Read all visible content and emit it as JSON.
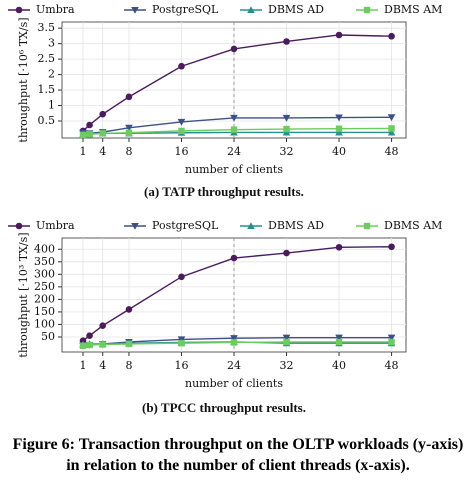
{
  "chart_data": [
    {
      "type": "line",
      "legend": "upper center",
      "grid": true,
      "x": [
        1,
        2,
        4,
        8,
        16,
        24,
        32,
        40,
        48
      ],
      "xlim": [
        -2.2,
        50.2
      ],
      "xticks": [
        1,
        4,
        8,
        16,
        24,
        32,
        40,
        48
      ],
      "ylim": [
        -0.05,
        3.7
      ],
      "yticks": [
        0.5,
        1.0,
        1.5,
        2.0,
        2.5,
        3.0,
        3.5
      ],
      "x_label": "number of clients",
      "y_label": "throughput [·10⁶ TX/s]",
      "vline": 24,
      "caption": "(a) TATP throughput results.",
      "series": [
        {
          "name": "Umbra",
          "color": "#4a1c5c",
          "marker": "circle",
          "values": [
            0.18,
            0.37,
            0.72,
            1.28,
            2.27,
            2.83,
            3.07,
            3.28,
            3.24
          ]
        },
        {
          "name": "PostgreSQL",
          "color": "#3d5088",
          "marker": "triangle-down",
          "values": [
            0.12,
            0.1,
            0.14,
            0.28,
            0.47,
            0.6,
            0.6,
            0.61,
            0.62
          ]
        },
        {
          "name": "DBMS AD",
          "color": "#2a8f8c",
          "marker": "triangle-up",
          "values": [
            0.07,
            0.08,
            0.1,
            0.1,
            0.12,
            0.13,
            0.13,
            0.13,
            0.13
          ]
        },
        {
          "name": "DBMS AM",
          "color": "#6ccc5f",
          "marker": "square",
          "values": [
            0.05,
            0.07,
            0.1,
            0.12,
            0.18,
            0.22,
            0.24,
            0.25,
            0.26
          ]
        }
      ]
    },
    {
      "type": "line",
      "legend": "upper center",
      "grid": true,
      "x": [
        1,
        2,
        4,
        8,
        16,
        24,
        32,
        40,
        48
      ],
      "xlim": [
        -2.2,
        50.2
      ],
      "xticks": [
        1,
        4,
        8,
        16,
        24,
        32,
        40,
        48
      ],
      "ylim": [
        -10,
        445
      ],
      "yticks": [
        50,
        100,
        150,
        200,
        250,
        300,
        350,
        400
      ],
      "x_label": "number of clients",
      "y_label": "throughput [·10³ TX/s]",
      "vline": 24,
      "caption": "(b) TPCC throughput results.",
      "series": [
        {
          "name": "Umbra",
          "color": "#4a1c5c",
          "marker": "circle",
          "values": [
            35,
            55,
            95,
            160,
            290,
            365,
            385,
            408,
            410
          ]
        },
        {
          "name": "PostgreSQL",
          "color": "#3d5088",
          "marker": "triangle-down",
          "values": [
            15,
            18,
            22,
            30,
            40,
            45,
            47,
            47,
            47
          ]
        },
        {
          "name": "DBMS AD",
          "color": "#2a8f8c",
          "marker": "triangle-up",
          "values": [
            20,
            22,
            22,
            25,
            28,
            30,
            25,
            25,
            25
          ]
        },
        {
          "name": "DBMS AM",
          "color": "#6ccc5f",
          "marker": "square",
          "values": [
            15,
            18,
            20,
            22,
            25,
            28,
            30,
            30,
            30
          ]
        }
      ]
    }
  ],
  "figure_caption": "Figure 6: Transaction throughput on the OLTP workloads (y-axis) in relation to the number of client threads (x-axis)."
}
